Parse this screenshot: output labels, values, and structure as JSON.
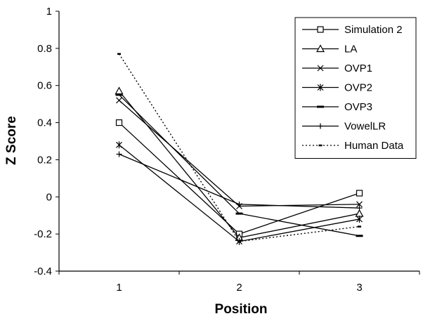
{
  "chart_data": {
    "type": "line",
    "xlabel": "Position",
    "ylabel": "Z Score",
    "categories": [
      "1",
      "2",
      "3"
    ],
    "ylim": [
      -0.4,
      1
    ],
    "yticks": [
      "1",
      "0.8",
      "0.6",
      "0.4",
      "0.2",
      "0",
      "-0.2",
      "-0.4"
    ],
    "grid": false,
    "legend_position": "top-right",
    "series": [
      {
        "name": "Simulation 2",
        "marker": "square",
        "dash": "solid",
        "values": [
          0.4,
          -0.2,
          0.02
        ]
      },
      {
        "name": "LA",
        "marker": "triangle",
        "dash": "solid",
        "values": [
          0.57,
          -0.22,
          -0.09
        ]
      },
      {
        "name": "OVP1",
        "marker": "x",
        "dash": "solid",
        "values": [
          0.52,
          -0.05,
          -0.04
        ]
      },
      {
        "name": "OVP2",
        "marker": "asterisk",
        "dash": "solid",
        "values": [
          0.28,
          -0.24,
          -0.12
        ]
      },
      {
        "name": "OVP3",
        "marker": "dash",
        "dash": "solid",
        "values": [
          0.55,
          -0.09,
          -0.21
        ]
      },
      {
        "name": "VowelLR",
        "marker": "plus",
        "dash": "solid",
        "values": [
          0.23,
          -0.04,
          -0.06
        ]
      },
      {
        "name": "Human Data",
        "marker": "dot",
        "dash": "dotted",
        "values": [
          0.77,
          -0.24,
          -0.16
        ]
      }
    ]
  }
}
